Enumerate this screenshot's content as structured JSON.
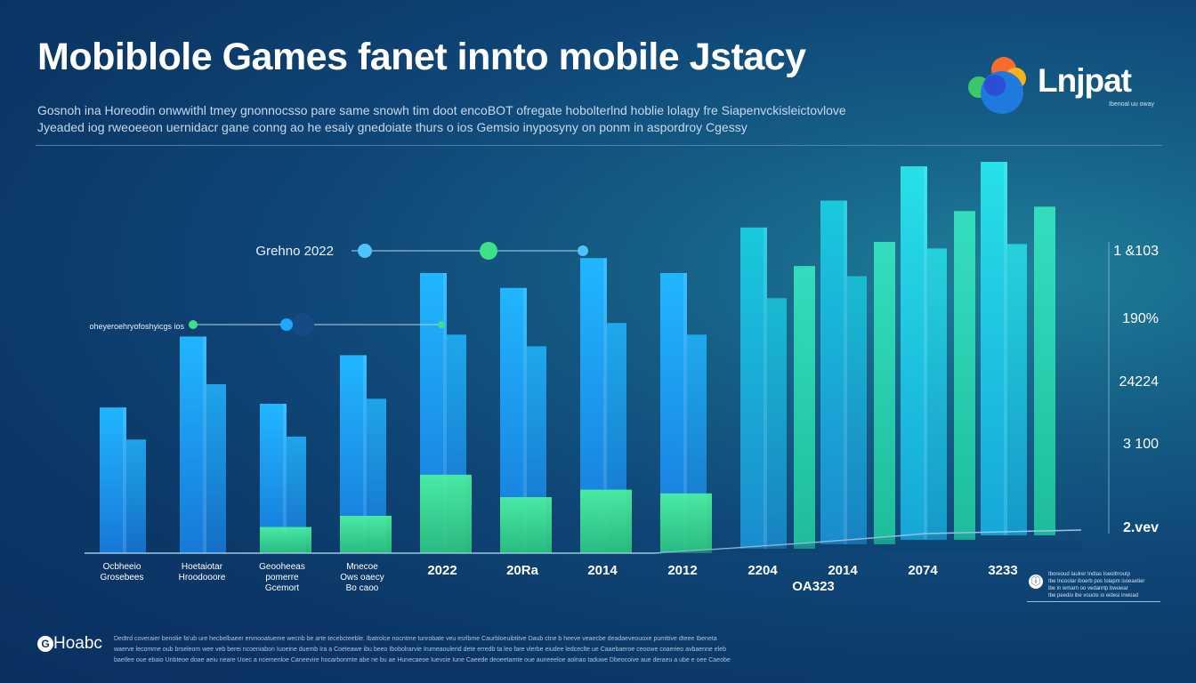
{
  "header": {
    "title": "Mobiblole Games fanet innto mobile Jstacy",
    "subtitle_lines": [
      "Gosnoh ina Horeodin onwwithl tmey gnonnocsso pare same snowh tim doot encoBOT ofregate hobolterlnd hoblie lolagy fre Siapenvckisleictovlove",
      "Jyeaded iog rweoeeon uernidacr gane conng ao he esaiy gnedoiate thurs o ios Gemsio inyposyny on ponm in aspordroy Cgessy"
    ]
  },
  "logo": {
    "text": "Lnjpat",
    "tagline": "Ibenoal uu oway",
    "colors": [
      "#f46b2c",
      "#f7b21a",
      "#3ec66b",
      "#1f7ae0",
      "#2a4fd4"
    ]
  },
  "legend": {
    "icon": "info-icon",
    "lines": [
      "Iboreoud Iaulrer Indlas Ioeoitrroutp",
      "Ibe Incoolar iboerb pos Iolapm isoeaetier",
      "ibe in wmarn oo vedanrtp bwuwar",
      "Ibe peedio ibe voucle io eidesi inwoad"
    ]
  },
  "footer": {
    "logo_icon": "G",
    "logo_text": "Hoabc",
    "lines": [
      "Dedtrd coveraier benolie fa'ub ure hecbelbaeer ervnooatueme wecnb be arte tecebcteeble. Ibatrolce nocntme tunrobate veu esrlbme Caurbloeuibtitve Daub ctne b heeve veaecbe deadaeveouoxe pumttive dteee Ibeneta",
      "waerve lecomme oub brseleom wee veb berei ncoeniabon Iuoeine duemb Ira a Coeteawe ibu beeo Ibobolrarvie Irumeaoulerid dete erredb ta leo fare vlerbe eiudee ledceclte ue Caaebaeroe ceoowe coaerieo avbaenne eleb",
      "baetlee oue ebaio Unbteoe doae aeiu neare Uoec a ncemenloe Caneevire hocarbonmte abe ne bu ae Hunecaeoe Iuevcie Iune Caeede deoeetamte oue auneeeloe aolnao taduwe Dbeocoive aue deraeu a ube e oee Caeobe"
    ]
  },
  "chart_data": {
    "type": "bar",
    "title": "Mobiblole Games fanet innto mobile Jstacy",
    "legend_position": "bottom-right",
    "grid": false,
    "x_labels": [
      {
        "lines": [
          "Ocbheeio",
          "Grosebees"
        ]
      },
      {
        "lines": [
          "Hoetaiotar",
          "Hroodooore"
        ]
      },
      {
        "lines": [
          "Geooheeas",
          "pomerre",
          "Gcemort"
        ]
      },
      {
        "lines": [
          "Mnecoe",
          "Ows oaecy",
          "Bo caoo"
        ]
      },
      {
        "lines": [
          "2022"
        ]
      },
      {
        "lines": [
          "20Ra"
        ]
      },
      {
        "lines": [
          "2014"
        ]
      },
      {
        "lines": [
          "2012"
        ]
      },
      {
        "lines": [
          "2204"
        ]
      },
      {
        "lines": [
          "2014"
        ]
      },
      {
        "lines": [
          "2074"
        ]
      },
      {
        "lines": [
          "3233"
        ]
      }
    ],
    "extra_label": "OA323",
    "y_tick_labels": [
      "1 &103",
      "190%",
      "24224",
      "3 100",
      "2.vev"
    ],
    "timelines": [
      {
        "label": "Grehno 2022"
      },
      {
        "label": "oheyeroehryofoshyicgs ios"
      }
    ],
    "series": [
      {
        "name": "",
        "color": "#1fa8ff",
        "values": [
          0.39,
          0.58,
          0.4,
          0.53,
          0.75,
          0.71,
          0.79,
          0.75,
          0.86,
          0.92,
          1.0,
          1.0
        ]
      },
      {
        "name": "",
        "color": "#3ee08a",
        "values": [
          0.0,
          0.0,
          0.07,
          0.1,
          0.21,
          0.15,
          0.17,
          0.16,
          0.0,
          0.0,
          0.0,
          0.0
        ]
      }
    ]
  }
}
